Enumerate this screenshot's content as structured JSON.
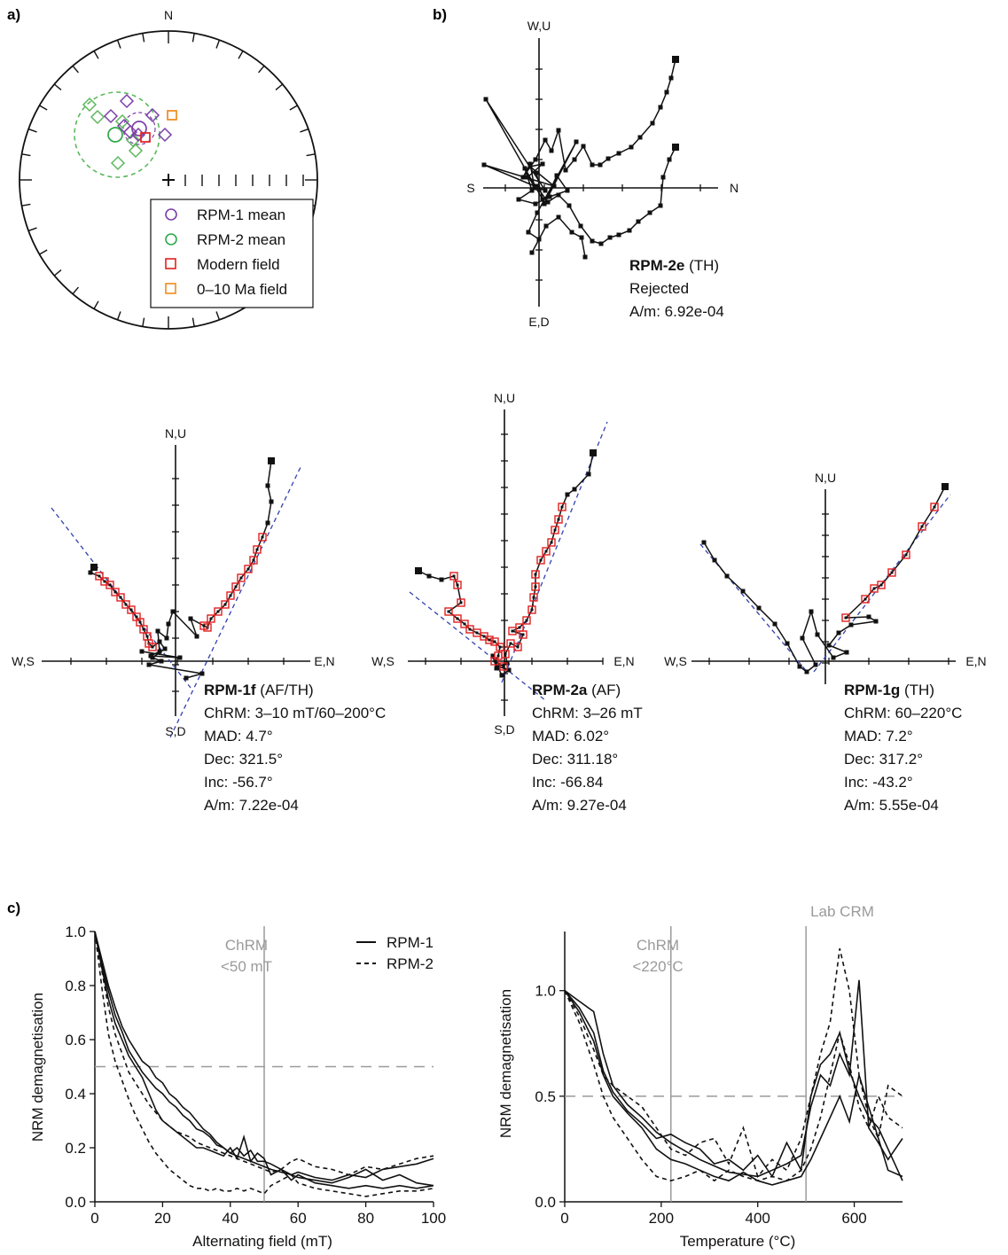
{
  "panel_labels": {
    "a": "a)",
    "b": "b)",
    "c": "c)"
  },
  "stereonet": {
    "north_label": "N",
    "legend": [
      {
        "label": "RPM-1 mean",
        "symbol": "circle",
        "color": "#7b3fa8"
      },
      {
        "label": "RPM-2 mean",
        "symbol": "circle",
        "color": "#2ea84a"
      },
      {
        "label": "Modern field",
        "symbol": "square",
        "color": "#e02020"
      },
      {
        "label": "0–10 Ma field",
        "symbol": "square",
        "color": "#f08a1c"
      }
    ],
    "colors": {
      "rpm1": "#7b3fa8",
      "rpm2": "#5cb85c",
      "modern": "#e02020",
      "ma": "#f08a1c"
    }
  },
  "zijderveld": {
    "rpm2e": {
      "axes": {
        "top": "W,U",
        "bottom": "E,D",
        "left": "S",
        "right": "N"
      },
      "name": "RPM-2e",
      "method": " (TH)",
      "lines": [
        "Rejected",
        "A/m: 6.92e-04"
      ]
    },
    "rpm1f": {
      "axes": {
        "top": "N,U",
        "bottom": "S,D",
        "left": "W,S",
        "right": "E,N"
      },
      "name": "RPM-1f",
      "method": " (AF/TH)",
      "lines": [
        "ChRM: 3–10 mT/60–200°C",
        "MAD: 4.7°",
        "Dec: 321.5°",
        "Inc: -56.7°",
        "A/m: 7.22e-04"
      ]
    },
    "rpm2a": {
      "axes": {
        "top": "N,U",
        "bottom": "S,D",
        "left": "W,S",
        "right": "E,N"
      },
      "name": "RPM-2a",
      "method": " (AF)",
      "lines": [
        "ChRM: 3–26 mT",
        "MAD: 6.02°",
        "Dec: 311.18°",
        "Inc: -66.84",
        "A/m: 9.27e-04"
      ]
    },
    "rpm1g": {
      "axes": {
        "top": "N,U",
        "bottom": "S,D",
        "left": "W,S",
        "right": "E,N"
      },
      "name": "RPM-1g",
      "method": " (TH)",
      "lines": [
        "ChRM: 60–220°C",
        "MAD: 7.2°",
        "Dec: 317.2°",
        "Inc: -43.2°",
        "A/m: 5.55e-04"
      ]
    }
  },
  "chart_data": [
    {
      "type": "line",
      "xlabel": "Alternating field (mT)",
      "ylabel": "NRM demagnetisation",
      "xlim": [
        0,
        100
      ],
      "ylim": [
        0,
        1.0
      ],
      "xticks": [
        "0",
        "20",
        "40",
        "60",
        "80",
        "100"
      ],
      "yticks": [
        "0.0",
        "0.2",
        "0.4",
        "0.6",
        "0.8",
        "1.0"
      ],
      "annotation": [
        "ChRM",
        "<50 mT"
      ],
      "vline": 50,
      "hline": 0.5,
      "legend": [
        {
          "name": "RPM-1",
          "dash": "solid"
        },
        {
          "name": "RPM-2",
          "dash": "dashed"
        }
      ],
      "series": [
        {
          "group": "RPM-1",
          "dash": false,
          "x": [
            0,
            2,
            4,
            6,
            8,
            10,
            12,
            14,
            16,
            18,
            20,
            22,
            24,
            26,
            28,
            30,
            32,
            34,
            36,
            38,
            40,
            42,
            44,
            46,
            48,
            50,
            52,
            55,
            58,
            60,
            65,
            70,
            75,
            80,
            85,
            90,
            95,
            100
          ],
          "y": [
            1.0,
            0.9,
            0.8,
            0.72,
            0.65,
            0.6,
            0.56,
            0.52,
            0.5,
            0.46,
            0.44,
            0.4,
            0.38,
            0.35,
            0.33,
            0.3,
            0.27,
            0.25,
            0.22,
            0.2,
            0.18,
            0.2,
            0.17,
            0.19,
            0.15,
            0.15,
            0.14,
            0.12,
            0.1,
            0.11,
            0.09,
            0.08,
            0.1,
            0.09,
            0.12,
            0.13,
            0.14,
            0.16
          ]
        },
        {
          "group": "RPM-1",
          "dash": false,
          "x": [
            0,
            2,
            4,
            6,
            8,
            10,
            12,
            14,
            16,
            18,
            20,
            22,
            24,
            26,
            28,
            30,
            32,
            34,
            36,
            38,
            40,
            42,
            44,
            46,
            48,
            50,
            52,
            55,
            58,
            60,
            65,
            70,
            75,
            80,
            85,
            90,
            95,
            100
          ],
          "y": [
            1.0,
            0.88,
            0.78,
            0.69,
            0.63,
            0.56,
            0.52,
            0.48,
            0.45,
            0.42,
            0.4,
            0.37,
            0.35,
            0.32,
            0.3,
            0.27,
            0.26,
            0.24,
            0.21,
            0.2,
            0.18,
            0.17,
            0.16,
            0.15,
            0.14,
            0.13,
            0.12,
            0.11,
            0.1,
            0.09,
            0.08,
            0.07,
            0.09,
            0.12,
            0.08,
            0.1,
            0.07,
            0.06
          ]
        },
        {
          "group": "RPM-1",
          "dash": false,
          "x": [
            0,
            2,
            4,
            6,
            8,
            10,
            12,
            14,
            16,
            18,
            20,
            22,
            24,
            26,
            28,
            30,
            32,
            34,
            36,
            38,
            40,
            42,
            44,
            46,
            48,
            50,
            52,
            55,
            58,
            60,
            65,
            70,
            75,
            80,
            85,
            90,
            95,
            100
          ],
          "y": [
            1.0,
            0.87,
            0.75,
            0.66,
            0.6,
            0.54,
            0.5,
            0.46,
            0.4,
            0.34,
            0.3,
            0.28,
            0.26,
            0.24,
            0.22,
            0.2,
            0.2,
            0.19,
            0.18,
            0.17,
            0.2,
            0.16,
            0.24,
            0.15,
            0.18,
            0.16,
            0.1,
            0.12,
            0.08,
            0.1,
            0.07,
            0.06,
            0.05,
            0.06,
            0.05,
            0.06,
            0.05,
            0.06
          ]
        },
        {
          "group": "RPM-2",
          "dash": true,
          "x": [
            0,
            2,
            4,
            6,
            8,
            10,
            12,
            14,
            16,
            18,
            20,
            22,
            24,
            26,
            28,
            30,
            32,
            34,
            36,
            38,
            40,
            42,
            44,
            46,
            48,
            50,
            52,
            55,
            58,
            60,
            65,
            70,
            75,
            80,
            85,
            90,
            95,
            100
          ],
          "y": [
            1.0,
            0.86,
            0.72,
            0.62,
            0.55,
            0.48,
            0.44,
            0.4,
            0.36,
            0.33,
            0.3,
            0.28,
            0.26,
            0.25,
            0.24,
            0.22,
            0.21,
            0.2,
            0.19,
            0.18,
            0.17,
            0.16,
            0.15,
            0.14,
            0.13,
            0.12,
            0.11,
            0.12,
            0.15,
            0.16,
            0.13,
            0.12,
            0.1,
            0.13,
            0.12,
            0.14,
            0.16,
            0.17
          ]
        },
        {
          "group": "RPM-2",
          "dash": true,
          "x": [
            0,
            2,
            4,
            6,
            8,
            10,
            12,
            14,
            16,
            18,
            20,
            22,
            24,
            26,
            28,
            30,
            32,
            34,
            36,
            38,
            40,
            42,
            44,
            46,
            48,
            50,
            52,
            55,
            58,
            60,
            65,
            70,
            75,
            80,
            85,
            90,
            95,
            100
          ],
          "y": [
            1.0,
            0.8,
            0.62,
            0.52,
            0.45,
            0.38,
            0.32,
            0.27,
            0.22,
            0.18,
            0.15,
            0.12,
            0.1,
            0.08,
            0.06,
            0.05,
            0.05,
            0.04,
            0.05,
            0.04,
            0.04,
            0.05,
            0.04,
            0.05,
            0.04,
            0.03,
            0.06,
            0.08,
            0.1,
            0.07,
            0.05,
            0.04,
            0.03,
            0.02,
            0.03,
            0.04,
            0.04,
            0.05
          ]
        }
      ]
    },
    {
      "type": "line",
      "xlabel": "Temperature (°C)",
      "ylabel": "NRM demagnetisation",
      "xlim": [
        0,
        700
      ],
      "ylim": [
        0,
        1.28
      ],
      "xticks": [
        "0",
        "200",
        "400",
        "600"
      ],
      "yticks": [
        "0.0",
        "0.5",
        "1.0"
      ],
      "annotation": [
        "ChRM",
        "<220°C"
      ],
      "annotation2": "Lab CRM",
      "vlines": [
        220,
        500
      ],
      "hline": 0.5,
      "series": [
        {
          "group": "RPM-1",
          "dash": false,
          "x": [
            0,
            30,
            60,
            80,
            100,
            130,
            160,
            190,
            220,
            250,
            280,
            310,
            340,
            370,
            400,
            430,
            460,
            490,
            510,
            530,
            550,
            570,
            590,
            610,
            630,
            650,
            670,
            700
          ],
          "y": [
            1.0,
            0.95,
            0.9,
            0.7,
            0.55,
            0.46,
            0.4,
            0.33,
            0.28,
            0.24,
            0.2,
            0.17,
            0.14,
            0.13,
            0.12,
            0.15,
            0.18,
            0.22,
            0.45,
            0.6,
            0.55,
            0.7,
            0.6,
            1.05,
            0.35,
            0.28,
            0.2,
            0.3
          ]
        },
        {
          "group": "RPM-1",
          "dash": false,
          "x": [
            0,
            30,
            60,
            80,
            100,
            130,
            160,
            190,
            220,
            250,
            280,
            310,
            340,
            370,
            400,
            430,
            460,
            490,
            510,
            530,
            550,
            570,
            590,
            610,
            630,
            650,
            670,
            700
          ],
          "y": [
            1.0,
            0.92,
            0.8,
            0.62,
            0.52,
            0.43,
            0.37,
            0.3,
            0.32,
            0.28,
            0.25,
            0.18,
            0.2,
            0.15,
            0.22,
            0.12,
            0.28,
            0.15,
            0.5,
            0.65,
            0.7,
            0.8,
            0.62,
            0.5,
            0.4,
            0.35,
            0.25,
            0.1
          ]
        },
        {
          "group": "RPM-1",
          "dash": false,
          "x": [
            0,
            30,
            60,
            80,
            100,
            130,
            160,
            190,
            220,
            250,
            280,
            310,
            340,
            370,
            400,
            430,
            460,
            490,
            510,
            530,
            550,
            570,
            590,
            610,
            630,
            650,
            670,
            700
          ],
          "y": [
            1.0,
            0.9,
            0.76,
            0.6,
            0.5,
            0.42,
            0.35,
            0.25,
            0.2,
            0.18,
            0.15,
            0.12,
            0.1,
            0.14,
            0.1,
            0.08,
            0.1,
            0.12,
            0.2,
            0.3,
            0.4,
            0.5,
            0.38,
            0.6,
            0.45,
            0.3,
            0.15,
            0.12
          ]
        },
        {
          "group": "RPM-2",
          "dash": true,
          "x": [
            0,
            30,
            60,
            80,
            100,
            130,
            160,
            190,
            220,
            250,
            280,
            310,
            340,
            370,
            400,
            430,
            460,
            490,
            510,
            530,
            550,
            570,
            590,
            610,
            630,
            650,
            670,
            700
          ],
          "y": [
            1.0,
            0.88,
            0.72,
            0.6,
            0.55,
            0.5,
            0.45,
            0.35,
            0.25,
            0.22,
            0.28,
            0.3,
            0.18,
            0.35,
            0.12,
            0.2,
            0.15,
            0.3,
            0.5,
            0.7,
            0.85,
            1.2,
            1.0,
            0.6,
            0.4,
            0.3,
            0.55,
            0.5
          ]
        },
        {
          "group": "RPM-2",
          "dash": true,
          "x": [
            0,
            30,
            60,
            80,
            100,
            130,
            160,
            190,
            220,
            250,
            280,
            310,
            340,
            370,
            400,
            430,
            460,
            490,
            510,
            530,
            550,
            570,
            590,
            610,
            630,
            650,
            670,
            700
          ],
          "y": [
            1.0,
            0.85,
            0.65,
            0.5,
            0.4,
            0.3,
            0.2,
            0.12,
            0.1,
            0.12,
            0.15,
            0.1,
            0.15,
            0.12,
            0.1,
            0.12,
            0.1,
            0.15,
            0.25,
            0.4,
            0.6,
            0.8,
            0.65,
            0.45,
            0.35,
            0.5,
            0.4,
            0.35
          ]
        }
      ]
    }
  ]
}
